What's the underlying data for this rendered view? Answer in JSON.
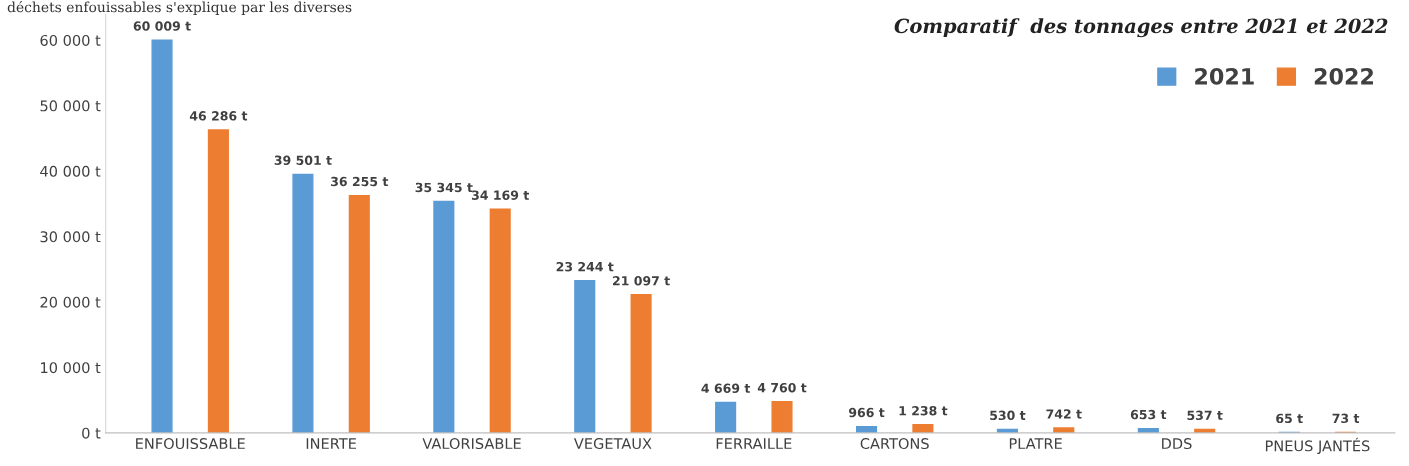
{
  "chart_data": {
    "type": "bar",
    "title": "Comparatif  des tonnages entre 2021 et 2022",
    "categories": [
      "ENFOUISSABLE",
      "INERTE",
      "VALORISABLE",
      "VEGETAUX",
      "FERRAILLE",
      "CARTONS",
      "PLATRE",
      "DDS",
      "PNEUS JANTÉS"
    ],
    "series": [
      {
        "name": "2021",
        "color": "#5b9bd5",
        "values": [
          60009,
          39501,
          35345,
          23244,
          4669,
          966,
          530,
          653,
          65
        ],
        "value_labels": [
          "60 009 t",
          "39 501 t",
          "35 345 t",
          "23 244 t",
          "4 669 t",
          "966 t",
          "530 t",
          "653 t",
          "65 t"
        ]
      },
      {
        "name": "2022",
        "color": "#ed7d31",
        "values": [
          46286,
          36255,
          34169,
          21097,
          4760,
          1238,
          742,
          537,
          73
        ],
        "value_labels": [
          "46 286 t",
          "36 255 t",
          "34 169 t",
          "21 097 t",
          "4 760 t",
          "1 238 t",
          "742 t",
          "537 t",
          "73 t"
        ]
      }
    ],
    "ylim": [
      0,
      64000
    ],
    "yticks": [
      {
        "value": 0,
        "label": "0 t"
      },
      {
        "value": 10000,
        "label": "10 000 t"
      },
      {
        "value": 20000,
        "label": "20 000 t"
      },
      {
        "value": 30000,
        "label": "30 000 t"
      },
      {
        "value": 40000,
        "label": "40 000 t"
      },
      {
        "value": 50000,
        "label": "50 000 t"
      },
      {
        "value": 60000,
        "label": "60 000 t"
      }
    ],
    "grid": false,
    "legend": "top right",
    "annotations": [
      "déchets enfouissables s'explique par les diverses"
    ]
  }
}
